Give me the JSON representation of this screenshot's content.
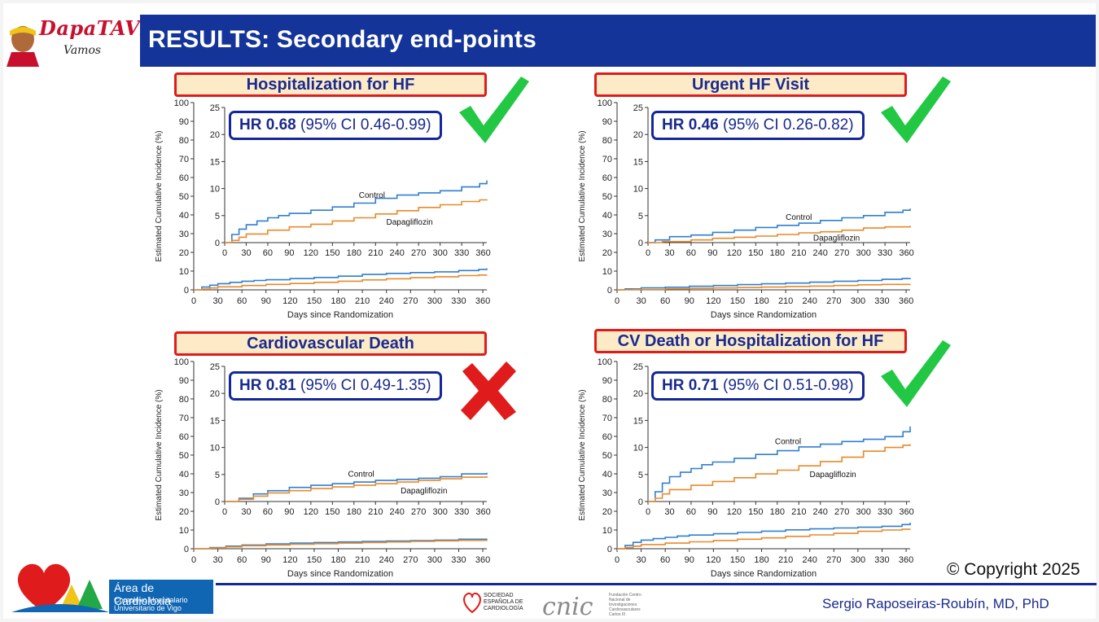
{
  "header": {
    "title": "RESULTS: Secondary end-points",
    "logo_text": "DapaTAVI",
    "logo_sub": "Vamos"
  },
  "footer": {
    "copyright": "© Copyright 2025",
    "author": "Sergio Raposeiras-Roubín, MD, PhD",
    "area_title": "Área de Cardioloxia",
    "area_sub": "Complexo Hospitalario Universitario de Vigo",
    "sec_text": "SOCIEDAD ESPAÑOLA DE CARDIOLOGÍA",
    "cnic_text": "cnic",
    "cnic_small": "Fundación Centro Nacional de Investigaciones Cardiovasculares Carlos III"
  },
  "panels": [
    {
      "title": "Hospitalization for HF",
      "hr_label": "HR",
      "hr_value": "0.68",
      "hr_ci": "(95% CI 0.46-0.99)",
      "verdict": "check"
    },
    {
      "title": "Urgent HF Visit",
      "hr_label": "HR",
      "hr_value": "0.46",
      "hr_ci": "(95% CI 0.26-0.82)",
      "verdict": "check"
    },
    {
      "title": "Cardiovascular Death",
      "hr_label": "HR",
      "hr_value": "0.81",
      "hr_ci": "(95% CI 0.49-1.35)",
      "verdict": "cross"
    },
    {
      "title": "CV Death or Hospitalization for HF",
      "hr_label": "HR",
      "hr_value": "0.71",
      "hr_ci": "(95% CI 0.51-0.98)",
      "verdict": "check"
    }
  ],
  "colors": {
    "control": "#2f7fd0",
    "dapagliflozin": "#e8892a",
    "title_bar": "#14349a",
    "check": "#22c844",
    "cross": "#e01b1b"
  },
  "chart_data": [
    {
      "type": "line",
      "title": "Hospitalization for HF",
      "xlabel": "Days since Randomization",
      "ylabel": "Estimated Cumulative Incidence (%)",
      "x_ticks": [
        0,
        30,
        60,
        90,
        120,
        150,
        180,
        210,
        240,
        270,
        300,
        330,
        360
      ],
      "xlim": [
        0,
        365
      ],
      "main_ylim": [
        0,
        100
      ],
      "main_y_ticks": [
        0,
        10,
        20,
        30,
        40,
        50,
        60,
        70,
        80,
        90,
        100
      ],
      "inset_ylim": [
        0,
        25
      ],
      "inset_y_ticks": [
        0,
        5,
        10,
        15,
        20,
        25
      ],
      "series": [
        {
          "name": "Control",
          "x": [
            0,
            10,
            20,
            30,
            45,
            60,
            75,
            90,
            120,
            150,
            180,
            210,
            240,
            270,
            300,
            330,
            355,
            365
          ],
          "y": [
            0,
            1.5,
            2.5,
            3.3,
            4.0,
            4.6,
            5.0,
            5.4,
            6.0,
            6.6,
            7.3,
            8.2,
            8.8,
            9.2,
            9.6,
            10.3,
            10.9,
            11.5
          ]
        },
        {
          "name": "Dapagliflozin",
          "x": [
            0,
            10,
            20,
            30,
            60,
            90,
            120,
            150,
            180,
            210,
            240,
            270,
            300,
            330,
            355,
            365
          ],
          "y": [
            0,
            0.4,
            1.0,
            1.6,
            2.3,
            2.9,
            3.4,
            4.0,
            4.6,
            5.3,
            5.9,
            6.5,
            7.0,
            7.6,
            7.9,
            8.0
          ]
        }
      ]
    },
    {
      "type": "line",
      "title": "Urgent HF Visit",
      "xlabel": "Days since Randomization",
      "ylabel": "Estimated Cumulative Incidence (%)",
      "x_ticks": [
        0,
        30,
        60,
        90,
        120,
        150,
        180,
        210,
        240,
        270,
        300,
        330,
        360
      ],
      "xlim": [
        0,
        365
      ],
      "main_ylim": [
        0,
        100
      ],
      "main_y_ticks": [
        0,
        10,
        20,
        30,
        40,
        50,
        60,
        70,
        80,
        90,
        100
      ],
      "inset_ylim": [
        0,
        25
      ],
      "inset_y_ticks": [
        0,
        5,
        10,
        15,
        20,
        25
      ],
      "series": [
        {
          "name": "Control",
          "x": [
            0,
            10,
            30,
            60,
            90,
            120,
            150,
            180,
            210,
            240,
            270,
            300,
            330,
            355,
            365
          ],
          "y": [
            0,
            0.5,
            1.1,
            1.4,
            1.9,
            2.3,
            2.8,
            3.2,
            3.6,
            4.1,
            4.6,
            5.0,
            5.6,
            6.0,
            6.3
          ]
        },
        {
          "name": "Dapagliflozin",
          "x": [
            0,
            20,
            60,
            90,
            120,
            150,
            180,
            210,
            240,
            270,
            300,
            330,
            365
          ],
          "y": [
            0,
            0.2,
            0.5,
            0.8,
            1.0,
            1.2,
            1.5,
            1.8,
            2.0,
            2.3,
            2.7,
            2.9,
            3.1
          ]
        }
      ]
    },
    {
      "type": "line",
      "title": "Cardiovascular Death",
      "xlabel": "Days since Randomization",
      "ylabel": "Estimated Cumulative Incidence (%)",
      "x_ticks": [
        0,
        30,
        60,
        90,
        120,
        150,
        180,
        210,
        240,
        270,
        300,
        330,
        360
      ],
      "xlim": [
        0,
        365
      ],
      "main_ylim": [
        0,
        100
      ],
      "main_y_ticks": [
        0,
        10,
        20,
        30,
        40,
        50,
        60,
        70,
        80,
        90,
        100
      ],
      "inset_ylim": [
        0,
        25
      ],
      "inset_y_ticks": [
        0,
        5,
        10,
        15,
        20,
        25
      ],
      "series": [
        {
          "name": "Control",
          "x": [
            0,
            20,
            40,
            60,
            90,
            120,
            150,
            180,
            210,
            240,
            270,
            300,
            330,
            365
          ],
          "y": [
            0,
            0.6,
            1.4,
            2.0,
            2.6,
            3.0,
            3.3,
            3.6,
            3.9,
            4.1,
            4.3,
            4.6,
            5.1,
            5.3
          ]
        },
        {
          "name": "Dapagliflozin",
          "x": [
            0,
            20,
            40,
            60,
            90,
            120,
            150,
            180,
            210,
            240,
            270,
            300,
            330,
            365
          ],
          "y": [
            0,
            0.4,
            1.0,
            1.6,
            2.0,
            2.4,
            2.7,
            3.0,
            3.3,
            3.6,
            3.9,
            4.2,
            4.5,
            4.7
          ]
        }
      ]
    },
    {
      "type": "line",
      "title": "CV Death or Hospitalization for HF",
      "xlabel": "Days since Randomization",
      "ylabel": "Estimated Cumulative Incidence (%)",
      "x_ticks": [
        0,
        30,
        60,
        90,
        120,
        150,
        180,
        210,
        240,
        270,
        300,
        330,
        360
      ],
      "xlim": [
        0,
        365
      ],
      "main_ylim": [
        0,
        100
      ],
      "main_y_ticks": [
        0,
        10,
        20,
        30,
        40,
        50,
        60,
        70,
        80,
        90,
        100
      ],
      "inset_ylim": [
        0,
        25
      ],
      "inset_y_ticks": [
        0,
        5,
        10,
        15,
        20,
        25
      ],
      "series": [
        {
          "name": "Control",
          "x": [
            0,
            10,
            20,
            30,
            45,
            60,
            75,
            90,
            120,
            150,
            180,
            210,
            240,
            270,
            300,
            330,
            355,
            365
          ],
          "y": [
            0,
            1.8,
            3.4,
            4.6,
            5.4,
            6.1,
            6.8,
            7.3,
            8.0,
            8.7,
            9.4,
            10.1,
            10.6,
            11.1,
            11.5,
            12.0,
            12.9,
            13.9
          ]
        },
        {
          "name": "Dapagliflozin",
          "x": [
            0,
            10,
            20,
            30,
            60,
            90,
            120,
            150,
            180,
            210,
            240,
            270,
            300,
            330,
            355,
            365
          ],
          "y": [
            0,
            0.6,
            1.4,
            2.2,
            3.0,
            3.7,
            4.4,
            5.1,
            5.8,
            6.6,
            7.4,
            8.2,
            9.3,
            10.0,
            10.4,
            10.6
          ]
        }
      ]
    }
  ]
}
